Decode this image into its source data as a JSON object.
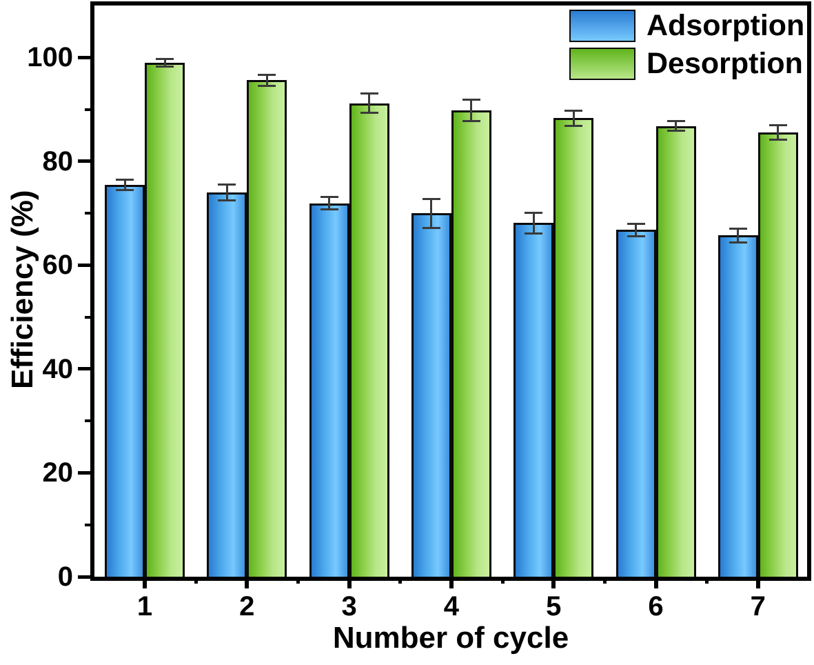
{
  "chart_data": {
    "type": "bar",
    "title": "",
    "categories": [
      "1",
      "2",
      "3",
      "4",
      "5",
      "6",
      "7"
    ],
    "series": [
      {
        "name": "Adsorption",
        "values": [
          75.5,
          74.0,
          71.9,
          70.0,
          68.1,
          66.8,
          65.7
        ],
        "errors": [
          1.0,
          1.5,
          1.2,
          2.8,
          2.0,
          1.2,
          1.3
        ],
        "gradient": [
          "#2a7cd2",
          "#4da9ec",
          "#77c9ff",
          "#3f92de"
        ]
      },
      {
        "name": "Desorption",
        "values": [
          99.0,
          95.6,
          91.2,
          89.8,
          88.3,
          86.8,
          85.5
        ],
        "errors": [
          0.7,
          1.1,
          1.8,
          2.0,
          1.5,
          0.9,
          1.4
        ],
        "gradient": [
          "#61b41d",
          "#8ed04c",
          "#b8e689",
          "#c9ef9f"
        ]
      }
    ],
    "xlabel": "Number of cycle",
    "ylabel": "Efficiency (%)",
    "ylim": [
      0,
      110
    ],
    "yticks_major": [
      0,
      20,
      40,
      60,
      80,
      100
    ],
    "yticks_minor": [
      10,
      30,
      50,
      70,
      90
    ],
    "xticks_minor_between_categories": true,
    "grid": false,
    "legend": {
      "position": "top-right",
      "entries": [
        "Adsorption",
        "Desorption"
      ]
    },
    "colors": {
      "bar_border": "#0a0a0a",
      "error_bar": "#3a3a3a",
      "axis": "#000000",
      "background": "#ffffff"
    }
  }
}
